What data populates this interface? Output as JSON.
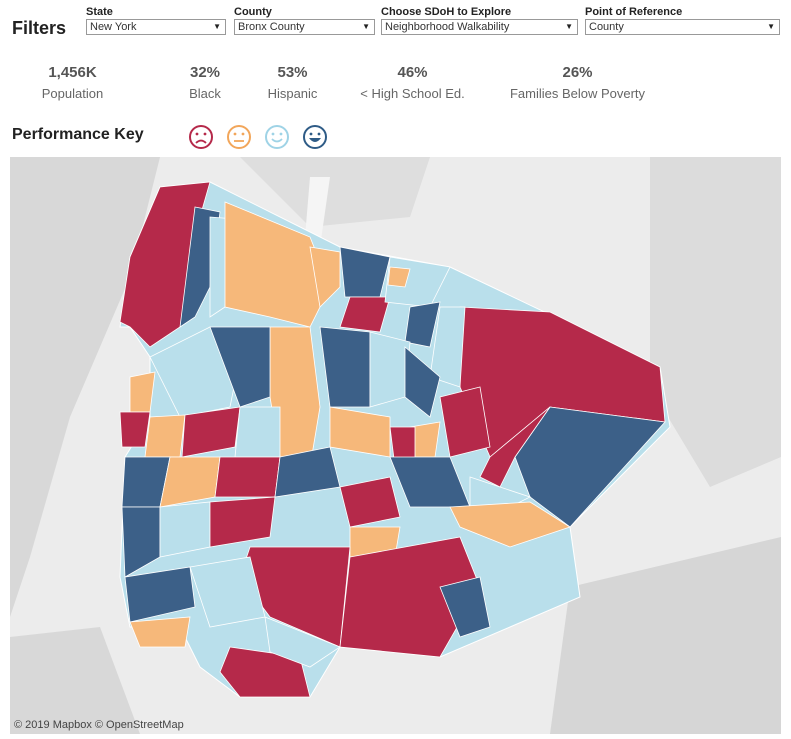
{
  "filters": {
    "title": "Filters",
    "state": {
      "label": "State",
      "value": "New York"
    },
    "county": {
      "label": "County",
      "value": "Bronx County"
    },
    "sdoh": {
      "label": "Choose SDoH to Explore",
      "value": "Neighborhood Walkability"
    },
    "reference": {
      "label": "Point of Reference",
      "value": "County"
    }
  },
  "stats": [
    {
      "value": "1,456K",
      "label": "Population"
    },
    {
      "value": "32%",
      "label": "Black"
    },
    {
      "value": "53%",
      "label": "Hispanic"
    },
    {
      "value": "46%",
      "label": "< High School Ed."
    },
    {
      "value": "26%",
      "label": "Families Below Poverty"
    }
  ],
  "performance_key": {
    "title": "Performance Key",
    "faces": [
      {
        "icon": "sad-face-icon",
        "color": "#b5294a"
      },
      {
        "icon": "neutral-face-icon",
        "color": "#f2a65a"
      },
      {
        "icon": "smile-face-icon",
        "color": "#9fd3e6"
      },
      {
        "icon": "big-smile-face-icon",
        "color": "#2e5b86"
      }
    ]
  },
  "map": {
    "attribution": "© 2019 Mapbox © OpenStreetMap",
    "colors": {
      "red": "#b5294a",
      "orange": "#f6b87a",
      "light": "#b9dfeb",
      "dark": "#3c6088",
      "land": "#d4d4d4",
      "water": "#ececec"
    }
  }
}
